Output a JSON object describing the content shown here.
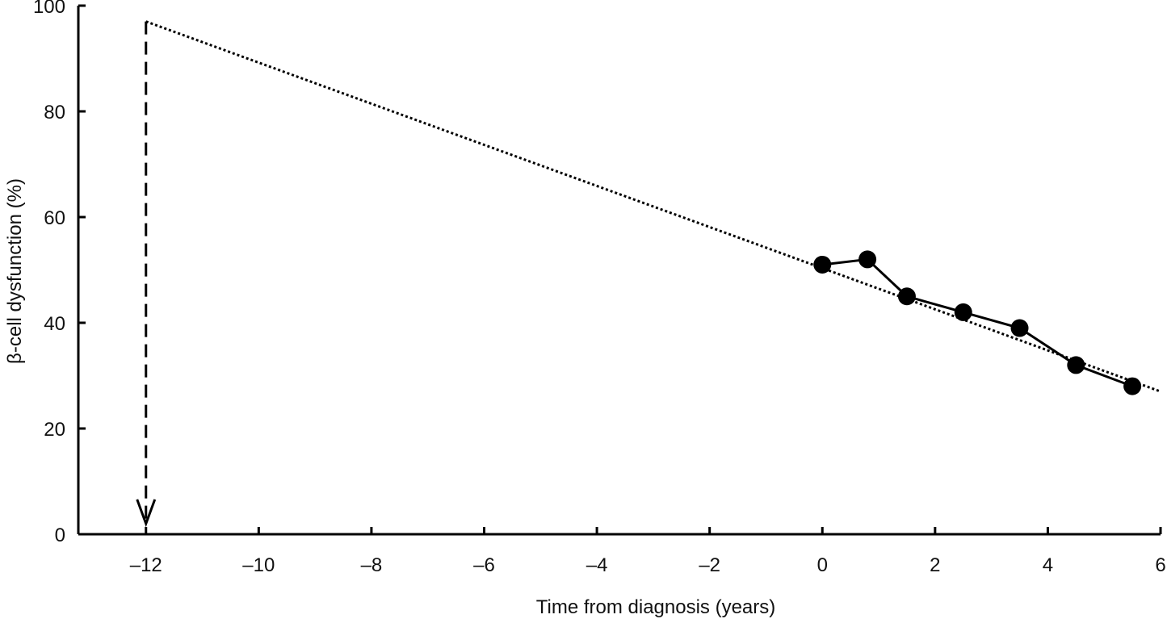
{
  "chart_data": {
    "type": "line",
    "title": "",
    "xlabel": "Time from diagnosis (years)",
    "ylabel": "β-cell dysfunction (%)",
    "xlim": [
      -13.2,
      6
    ],
    "ylim": [
      0,
      100
    ],
    "x_ticks": [
      -12,
      -10,
      -8,
      -6,
      -4,
      -2,
      0,
      2,
      4,
      6
    ],
    "x_tick_labels": [
      "–12",
      "–10",
      "–8",
      "–6",
      "–4",
      "–2",
      "0",
      "2",
      "4",
      "6"
    ],
    "y_ticks": [
      0,
      20,
      40,
      60,
      80,
      100
    ],
    "y_tick_labels": [
      "0",
      "20",
      "40",
      "60",
      "80",
      "100"
    ],
    "grid": false,
    "legend": "none",
    "series": [
      {
        "style": "solid-with-markers",
        "color": "#000000",
        "x": [
          0,
          0.8,
          1.5,
          2.5,
          3.5,
          4.5,
          5.5
        ],
        "y": [
          51,
          52,
          45,
          42,
          39,
          32,
          28
        ]
      },
      {
        "style": "dotted-trend",
        "color": "#000000",
        "x": [
          -12,
          6
        ],
        "y": [
          97,
          27
        ]
      }
    ],
    "annotations": [
      {
        "type": "dashed-arrow-down",
        "x": -12,
        "y_from": 97,
        "y_to": 2
      }
    ]
  }
}
